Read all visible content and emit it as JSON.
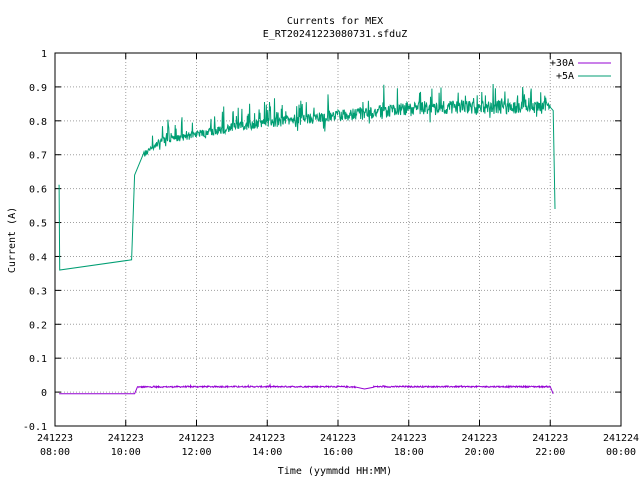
{
  "chart_data": {
    "type": "line",
    "title": "Currents for MEX",
    "subtitle": "E_RT20241223080731.sfduZ",
    "xlabel": "Time (yymmdd HH:MM)",
    "ylabel": "Current (A)",
    "xlim": [
      "2024-12-23 08:00",
      "2024-12-24 00:00"
    ],
    "ylim": [
      -0.1,
      1.0
    ],
    "grid": true,
    "legend_position": "top-right",
    "x_ticks": [
      {
        "date": "241223",
        "time": "08:00"
      },
      {
        "date": "241223",
        "time": "10:00"
      },
      {
        "date": "241223",
        "time": "12:00"
      },
      {
        "date": "241223",
        "time": "14:00"
      },
      {
        "date": "241223",
        "time": "16:00"
      },
      {
        "date": "241223",
        "time": "18:00"
      },
      {
        "date": "241223",
        "time": "20:00"
      },
      {
        "date": "241223",
        "time": "22:00"
      },
      {
        "date": "241224",
        "time": "00:00"
      }
    ],
    "y_ticks": [
      "-0.1",
      "0",
      "0.1",
      "0.2",
      "0.3",
      "0.4",
      "0.5",
      "0.6",
      "0.7",
      "0.8",
      "0.9",
      "1"
    ],
    "series": [
      {
        "name": "+30A",
        "color": "#9400d3",
        "x": [
          "2024-12-23 08:07",
          "2024-12-23 10:15",
          "2024-12-23 10:20",
          "2024-12-23 12:00",
          "2024-12-23 14:00",
          "2024-12-23 16:00",
          "2024-12-23 16:30",
          "2024-12-23 16:45",
          "2024-12-23 17:00",
          "2024-12-23 18:00",
          "2024-12-23 20:00",
          "2024-12-23 22:00",
          "2024-12-23 22:05"
        ],
        "y": [
          -0.005,
          -0.005,
          0.015,
          0.016,
          0.016,
          0.016,
          0.015,
          0.009,
          0.016,
          0.016,
          0.016,
          0.016,
          -0.005
        ]
      },
      {
        "name": "+5A",
        "color": "#009e73",
        "x": [
          "2024-12-23 08:06",
          "2024-12-23 08:07",
          "2024-12-23 08:08",
          "2024-12-23 10:10",
          "2024-12-23 10:15",
          "2024-12-23 10:30",
          "2024-12-23 11:00",
          "2024-12-23 12:00",
          "2024-12-23 13:00",
          "2024-12-23 14:00",
          "2024-12-23 15:00",
          "2024-12-23 16:00",
          "2024-12-23 17:00",
          "2024-12-23 18:00",
          "2024-12-23 19:00",
          "2024-12-23 20:00",
          "2024-12-23 21:00",
          "2024-12-23 22:00",
          "2024-12-23 22:05",
          "2024-12-23 22:08"
        ],
        "y": [
          0.61,
          0.61,
          0.36,
          0.39,
          0.64,
          0.7,
          0.74,
          0.76,
          0.78,
          0.795,
          0.805,
          0.815,
          0.825,
          0.835,
          0.84,
          0.84,
          0.84,
          0.84,
          0.83,
          0.54
        ]
      }
    ]
  }
}
